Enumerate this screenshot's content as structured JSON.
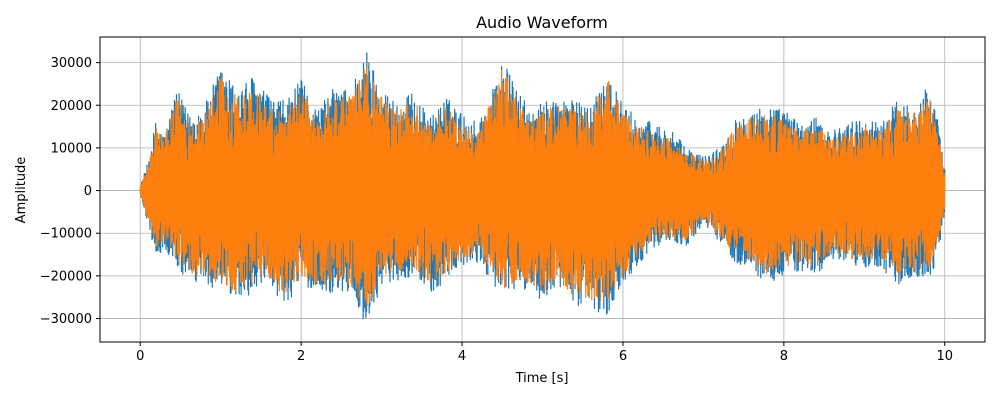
{
  "chart_data": {
    "type": "line",
    "title": "Audio Waveform",
    "xlabel": "Time [s]",
    "ylabel": "Amplitude",
    "xlim": [
      -0.5,
      10.5
    ],
    "ylim": [
      -35500,
      36000
    ],
    "xticks": [
      0,
      2,
      4,
      6,
      8,
      10
    ],
    "yticks": [
      -30000,
      -20000,
      -10000,
      0,
      10000,
      20000,
      30000
    ],
    "xtick_labels": [
      "0",
      "2",
      "4",
      "6",
      "8",
      "10"
    ],
    "ytick_labels": [
      "−30000",
      "−20000",
      "−10000",
      "0",
      "10000",
      "20000",
      "30000"
    ],
    "grid": true,
    "series": [
      {
        "color": "#1f77b4",
        "x": [
          0,
          0.1,
          0.2,
          0.3,
          0.45,
          0.6,
          0.8,
          1.0,
          1.2,
          1.4,
          1.6,
          1.8,
          2.0,
          2.2,
          2.4,
          2.6,
          2.82,
          3.0,
          3.2,
          3.4,
          3.6,
          3.8,
          4.0,
          4.2,
          4.4,
          4.5,
          4.7,
          4.9,
          5.0,
          5.2,
          5.4,
          5.6,
          5.8,
          6.0,
          6.2,
          6.4,
          6.6,
          6.8,
          7.0,
          7.2,
          7.4,
          7.6,
          7.8,
          8.0,
          8.2,
          8.4,
          8.6,
          8.8,
          9.0,
          9.2,
          9.4,
          9.6,
          9.8,
          9.9,
          10.0
        ],
        "max": [
          1000,
          7000,
          17000,
          13000,
          24000,
          18000,
          20000,
          29000,
          24000,
          27000,
          22000,
          21000,
          26000,
          19000,
          24000,
          24000,
          33000,
          24000,
          21000,
          23000,
          17000,
          22000,
          18000,
          16000,
          25000,
          31000,
          23000,
          18000,
          21000,
          22000,
          21000,
          20000,
          29000,
          20000,
          17000,
          16000,
          14000,
          10000,
          8000,
          10000,
          17000,
          19000,
          20000,
          19000,
          16000,
          17000,
          14000,
          16000,
          17000,
          16000,
          21000,
          20000,
          25000,
          18000,
          5000
        ],
        "min": [
          -1000,
          -8000,
          -16000,
          -14000,
          -18000,
          -22000,
          -22000,
          -24000,
          -26000,
          -24000,
          -23000,
          -27000,
          -22000,
          -24000,
          -24000,
          -24000,
          -32000,
          -22000,
          -21000,
          -20000,
          -24000,
          -22000,
          -18000,
          -17000,
          -22000,
          -26000,
          -23000,
          -24000,
          -26000,
          -23000,
          -27000,
          -28000,
          -29000,
          -22000,
          -17000,
          -13000,
          -12000,
          -13000,
          -8000,
          -12000,
          -17000,
          -19000,
          -22000,
          -20000,
          -19000,
          -20000,
          -16000,
          -18000,
          -18000,
          -18000,
          -22000,
          -21000,
          -21000,
          -17000,
          -5000
        ]
      },
      {
        "color": "#ff7f0e",
        "x": [
          0,
          0.1,
          0.2,
          0.3,
          0.45,
          0.6,
          0.8,
          1.0,
          1.2,
          1.4,
          1.6,
          1.8,
          2.0,
          2.2,
          2.4,
          2.6,
          2.82,
          3.0,
          3.2,
          3.4,
          3.6,
          3.8,
          4.0,
          4.2,
          4.4,
          4.5,
          4.7,
          4.9,
          5.0,
          5.2,
          5.4,
          5.6,
          5.8,
          6.0,
          6.2,
          6.4,
          6.6,
          6.8,
          7.0,
          7.2,
          7.4,
          7.6,
          7.8,
          8.0,
          8.2,
          8.4,
          8.6,
          8.8,
          9.0,
          9.2,
          9.4,
          9.6,
          9.8,
          9.9,
          10.0
        ],
        "max": [
          900,
          6000,
          15000,
          12000,
          22000,
          16000,
          18000,
          27000,
          22000,
          25000,
          20000,
          19000,
          24000,
          17000,
          22000,
          22000,
          30000,
          22000,
          19000,
          21000,
          15000,
          20000,
          16000,
          14000,
          23000,
          29000,
          21000,
          16000,
          19000,
          20000,
          19000,
          18000,
          27000,
          18000,
          15000,
          14000,
          12000,
          9000,
          7000,
          9000,
          15000,
          17000,
          18000,
          17000,
          14000,
          15000,
          12000,
          14000,
          15000,
          14000,
          19000,
          18000,
          23000,
          16000,
          4000
        ],
        "min": [
          -900,
          -7000,
          -14000,
          -12000,
          -16000,
          -20000,
          -20000,
          -22000,
          -24000,
          -22000,
          -21000,
          -25000,
          -20000,
          -22000,
          -22000,
          -22000,
          -28000,
          -20000,
          -19000,
          -18000,
          -22000,
          -20000,
          -16000,
          -15000,
          -20000,
          -24000,
          -21000,
          -22000,
          -24000,
          -21000,
          -25000,
          -26000,
          -26000,
          -20000,
          -15000,
          -12000,
          -11000,
          -12000,
          -7000,
          -11000,
          -15000,
          -17000,
          -20000,
          -18000,
          -17000,
          -18000,
          -14000,
          -16000,
          -16000,
          -16000,
          -20000,
          -19000,
          -19000,
          -15000,
          -4000
        ]
      }
    ]
  }
}
